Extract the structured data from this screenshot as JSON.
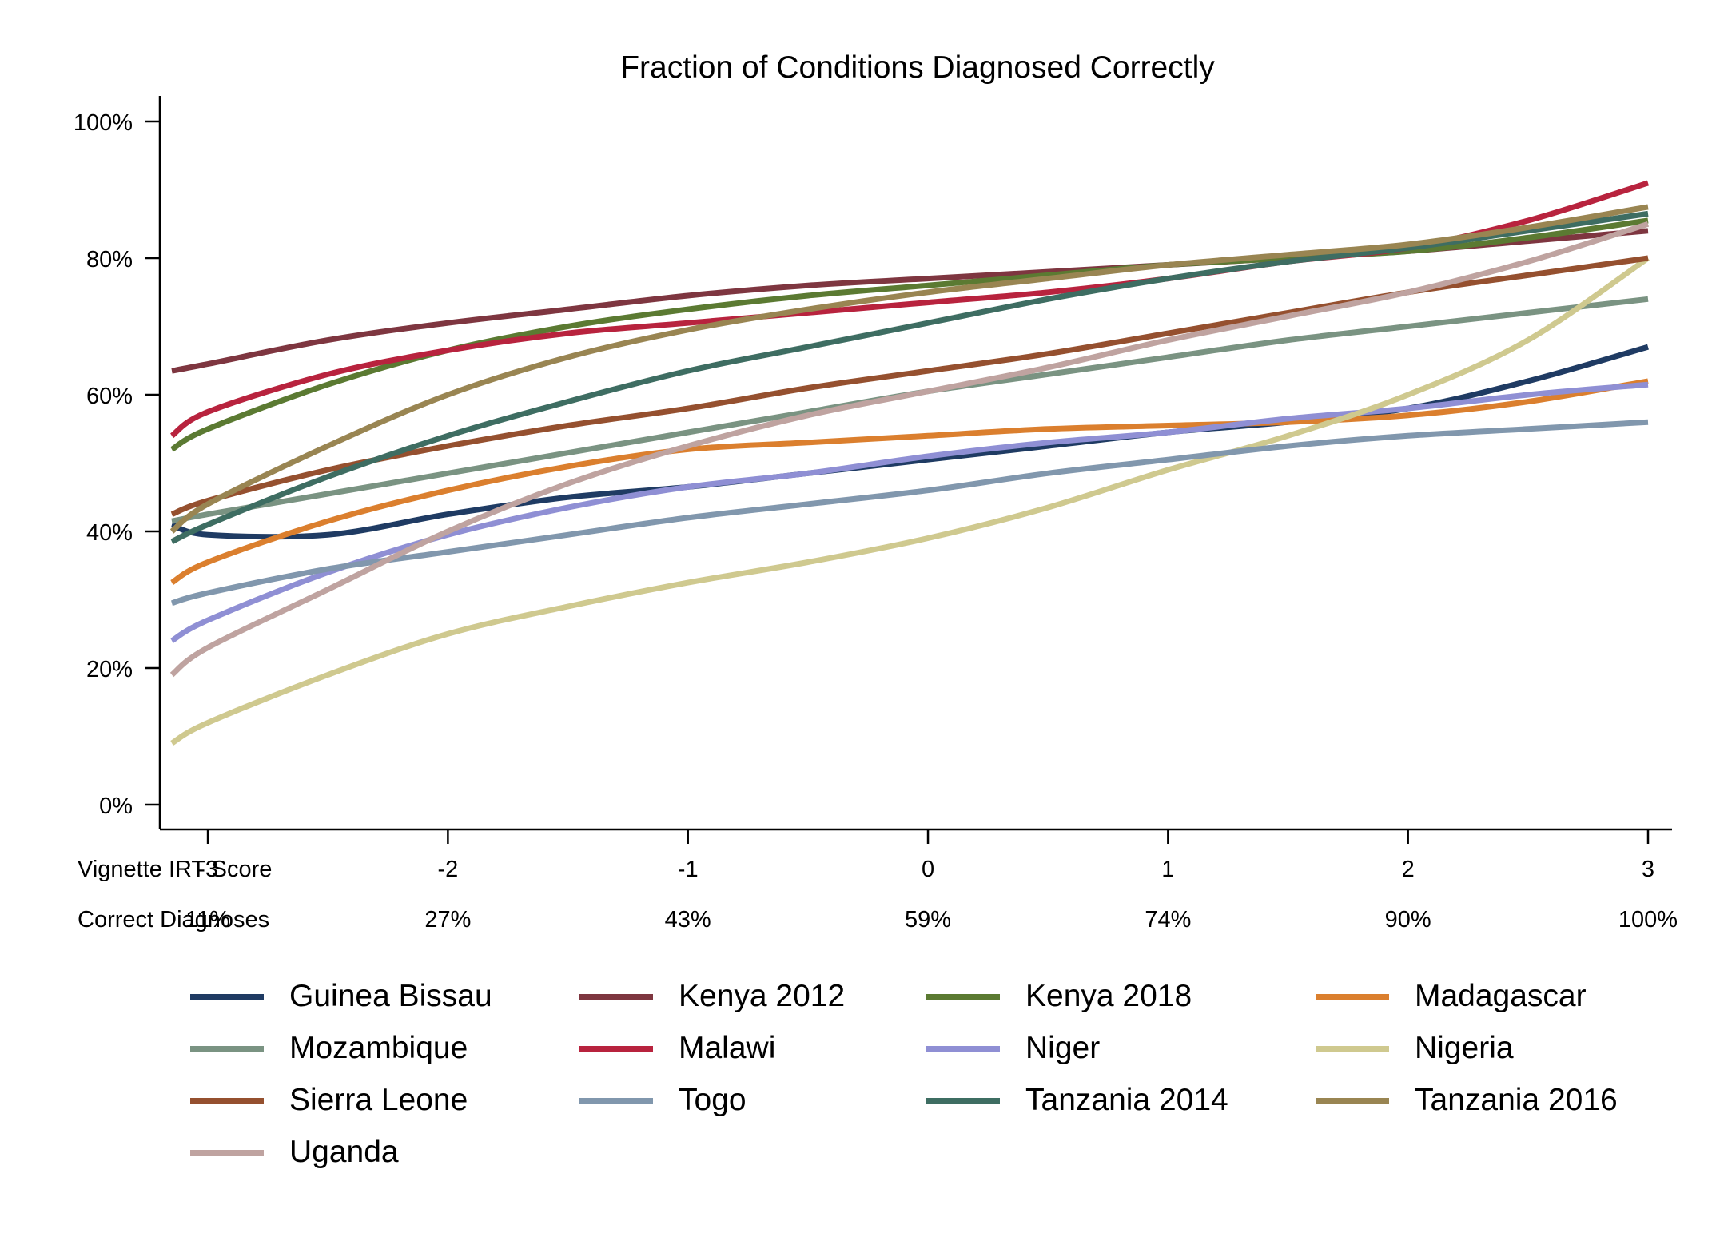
{
  "chart_data": {
    "type": "line",
    "title": "Fraction of Conditions Diagnosed Correctly",
    "xlabel": "",
    "ylabel": "",
    "xlim": [
      -3.2,
      3.0
    ],
    "ylim": [
      0,
      100
    ],
    "yticks": [
      0,
      20,
      40,
      60,
      80,
      100
    ],
    "ytick_labels": [
      "0%",
      "20%",
      "40%",
      "60%",
      "80%",
      "100%"
    ],
    "xticks": [
      -3,
      -2,
      -1,
      0,
      1,
      2,
      3
    ],
    "secondary_rows": [
      {
        "label": "Vignette IRT Score",
        "values": [
          "-3",
          "-2",
          "-1",
          "0",
          "1",
          "2",
          "3"
        ]
      },
      {
        "label": "Correct Diagnoses",
        "values": [
          "11%",
          "27%",
          "43%",
          "59%",
          "74%",
          "90%",
          "100%"
        ]
      }
    ],
    "grid": false,
    "legend_position": "bottom",
    "series": [
      {
        "name": "Guinea Bissau",
        "color": "#1f3b63",
        "x": [
          -3.15,
          -3,
          -2.5,
          -2,
          -1.5,
          -1,
          -0.5,
          0,
          0.5,
          1,
          1.5,
          2,
          2.5,
          3
        ],
        "y": [
          41,
          39.5,
          39.5,
          42.5,
          45,
          46.5,
          48.5,
          50.5,
          52.5,
          54.5,
          56,
          58,
          62,
          67
        ]
      },
      {
        "name": "Kenya 2012",
        "color": "#7e3640",
        "x": [
          -3.15,
          -3,
          -2.5,
          -2,
          -1.5,
          -1,
          -0.5,
          0,
          0.5,
          1,
          1.5,
          2,
          2.5,
          3
        ],
        "y": [
          63.5,
          64.5,
          68,
          70.5,
          72.5,
          74.5,
          76,
          77,
          78,
          79,
          80,
          81,
          82.5,
          84
        ]
      },
      {
        "name": "Kenya 2018",
        "color": "#5b7a32",
        "x": [
          -3.15,
          -3,
          -2.5,
          -2,
          -1.5,
          -1,
          -0.5,
          0,
          0.5,
          1,
          1.5,
          2,
          2.5,
          3
        ],
        "y": [
          52,
          55,
          61.5,
          66.5,
          70,
          72.5,
          74.5,
          76,
          77.5,
          79,
          80,
          81,
          83,
          85.5
        ]
      },
      {
        "name": "Madagascar",
        "color": "#db7f2e",
        "x": [
          -3.15,
          -3,
          -2.5,
          -2,
          -1.5,
          -1,
          -0.5,
          0,
          0.5,
          1,
          1.5,
          2,
          2.5,
          3
        ],
        "y": [
          32.5,
          35.5,
          41.5,
          46,
          49.5,
          52,
          53,
          54,
          55,
          55.5,
          56,
          57,
          59,
          62
        ]
      },
      {
        "name": "Mozambique",
        "color": "#7a9382",
        "x": [
          -3.15,
          -3,
          -2.5,
          -2,
          -1.5,
          -1,
          -0.5,
          0,
          0.5,
          1,
          1.5,
          2,
          2.5,
          3
        ],
        "y": [
          41.5,
          42.5,
          45.5,
          48.5,
          51.5,
          54.5,
          57.5,
          60.5,
          63,
          65.5,
          68,
          70,
          72,
          74
        ]
      },
      {
        "name": "Malawi",
        "color": "#b8233e",
        "x": [
          -3.15,
          -3,
          -2.5,
          -2,
          -1.5,
          -1,
          -0.5,
          0,
          0.5,
          1,
          1.5,
          2,
          2.5,
          3
        ],
        "y": [
          54,
          57.5,
          63,
          66.5,
          69,
          70.5,
          72,
          73.5,
          75,
          77,
          79.5,
          81.5,
          85.5,
          91
        ]
      },
      {
        "name": "Niger",
        "color": "#8f8fd4",
        "x": [
          -3.15,
          -3,
          -2.5,
          -2,
          -1.5,
          -1,
          -0.5,
          0,
          0.5,
          1,
          1.5,
          2,
          2.5,
          3
        ],
        "y": [
          24,
          27,
          34,
          39.5,
          43.5,
          46.5,
          48.5,
          51,
          53,
          54.5,
          56.5,
          58,
          60,
          61.5
        ]
      },
      {
        "name": "Nigeria",
        "color": "#cfc98f",
        "x": [
          -3.15,
          -3,
          -2.5,
          -2,
          -1.5,
          -1,
          -0.5,
          0,
          0.5,
          1,
          1.5,
          2,
          2.5,
          3
        ],
        "y": [
          9,
          12,
          19,
          25,
          29,
          32.5,
          35.5,
          39,
          43.5,
          49,
          54,
          60,
          68,
          80
        ]
      },
      {
        "name": "Sierra Leone",
        "color": "#95502f",
        "x": [
          -3.15,
          -3,
          -2.5,
          -2,
          -1.5,
          -1,
          -0.5,
          0,
          0.5,
          1,
          1.5,
          2,
          2.5,
          3
        ],
        "y": [
          42.5,
          44.5,
          49,
          52.5,
          55.5,
          58,
          61,
          63.5,
          66,
          69,
          72,
          75,
          77.5,
          80
        ]
      },
      {
        "name": "Togo",
        "color": "#8197ad",
        "x": [
          -3.15,
          -3,
          -2.5,
          -2,
          -1.5,
          -1,
          -0.5,
          0,
          0.5,
          1,
          1.5,
          2,
          2.5,
          3
        ],
        "y": [
          29.5,
          31,
          34.5,
          37,
          39.5,
          42,
          44,
          46,
          48.5,
          50.5,
          52.5,
          54,
          55,
          56
        ]
      },
      {
        "name": "Tanzania 2014",
        "color": "#3e6d62",
        "x": [
          -3.15,
          -3,
          -2.5,
          -2,
          -1.5,
          -1,
          -0.5,
          0,
          0.5,
          1,
          1.5,
          2,
          2.5,
          3
        ],
        "y": [
          38.5,
          41,
          48,
          54,
          59,
          63.5,
          67,
          70.5,
          74,
          77,
          79.5,
          81.5,
          84,
          86.5
        ]
      },
      {
        "name": "Tanzania 2016",
        "color": "#998552",
        "x": [
          -3.15,
          -3,
          -2.5,
          -2,
          -1.5,
          -1,
          -0.5,
          0,
          0.5,
          1,
          1.5,
          2,
          2.5,
          3
        ],
        "y": [
          40,
          44,
          52.5,
          60,
          65.5,
          69.5,
          72.5,
          75,
          77,
          79,
          80.5,
          82,
          84.5,
          87.5
        ]
      },
      {
        "name": "Uganda",
        "color": "#bfa3a0",
        "x": [
          -3.15,
          -3,
          -2.5,
          -2,
          -1.5,
          -1,
          -0.5,
          0,
          0.5,
          1,
          1.5,
          2,
          2.5,
          3
        ],
        "y": [
          19,
          23,
          31.5,
          40,
          47,
          52.5,
          57,
          60.5,
          64,
          68,
          71.5,
          75,
          79.5,
          85
        ]
      }
    ]
  }
}
